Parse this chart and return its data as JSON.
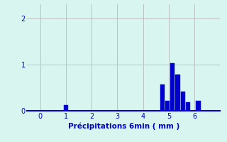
{
  "title": "",
  "xlabel": "Précipitations 6min ( mm )",
  "ylabel": "",
  "xlim": [
    -0.5,
    7.0
  ],
  "ylim": [
    0,
    2.3
  ],
  "yticks": [
    0,
    1,
    2
  ],
  "xticks": [
    0,
    1,
    2,
    3,
    4,
    5,
    6
  ],
  "background_color": "#d8f5f0",
  "bar_color": "#0000cc",
  "bar_edge_color": "#0000cc",
  "bar_data": [
    {
      "x": 1.0,
      "height": 0.12
    },
    {
      "x": 4.75,
      "height": 0.57
    },
    {
      "x": 4.95,
      "height": 0.22
    },
    {
      "x": 5.15,
      "height": 1.02
    },
    {
      "x": 5.35,
      "height": 0.78
    },
    {
      "x": 5.55,
      "height": 0.42
    },
    {
      "x": 5.75,
      "height": 0.18
    },
    {
      "x": 6.15,
      "height": 0.22
    }
  ],
  "bar_width": 0.17,
  "grid_color": "#b0b0b0",
  "axis_color": "#0000cc",
  "tick_label_color": "#0000cc",
  "xlabel_color": "#0000cc",
  "xlabel_fontsize": 7.5,
  "tick_fontsize": 7
}
